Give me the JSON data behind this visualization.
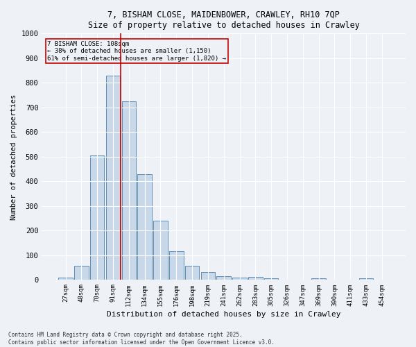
{
  "title_line1": "7, BISHAM CLOSE, MAIDENBOWER, CRAWLEY, RH10 7QP",
  "title_line2": "Size of property relative to detached houses in Crawley",
  "xlabel": "Distribution of detached houses by size in Crawley",
  "ylabel": "Number of detached properties",
  "bar_labels": [
    "27sqm",
    "48sqm",
    "70sqm",
    "91sqm",
    "112sqm",
    "134sqm",
    "155sqm",
    "176sqm",
    "198sqm",
    "219sqm",
    "241sqm",
    "262sqm",
    "283sqm",
    "305sqm",
    "326sqm",
    "347sqm",
    "369sqm",
    "390sqm",
    "411sqm",
    "433sqm",
    "454sqm"
  ],
  "bar_values": [
    10,
    57,
    505,
    828,
    725,
    428,
    240,
    118,
    57,
    32,
    14,
    10,
    13,
    7,
    0,
    0,
    8,
    0,
    0,
    6,
    0
  ],
  "bar_color": "#c8d8e8",
  "bar_edge_color": "#5b8db8",
  "bg_color": "#eef2f7",
  "grid_color": "#ffffff",
  "annotation_text": "7 BISHAM CLOSE: 108sqm\n← 38% of detached houses are smaller (1,150)\n61% of semi-detached houses are larger (1,820) →",
  "vline_index": 4,
  "vline_color": "#cc0000",
  "annotation_box_color": "#cc0000",
  "ylim": [
    0,
    1000
  ],
  "yticks": [
    0,
    100,
    200,
    300,
    400,
    500,
    600,
    700,
    800,
    900,
    1000
  ],
  "footnote": "Contains HM Land Registry data © Crown copyright and database right 2025.\nContains public sector information licensed under the Open Government Licence v3.0."
}
